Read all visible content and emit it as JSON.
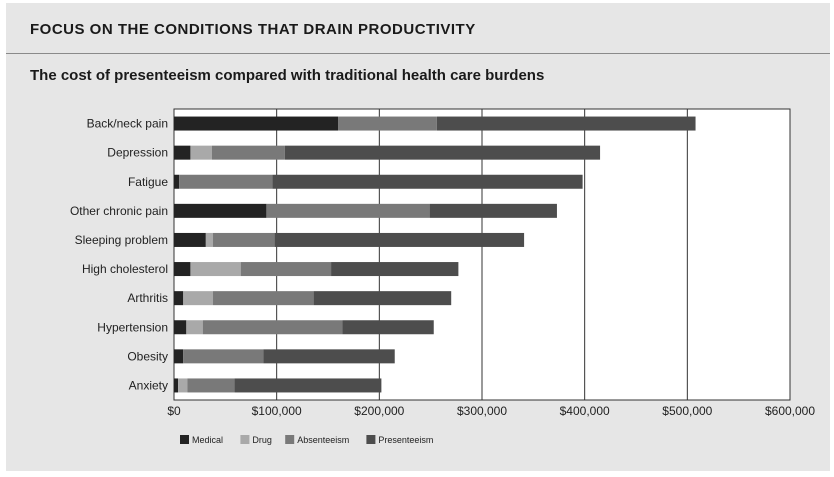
{
  "header": {
    "section_title": "FOCUS ON THE CONDITIONS THAT DRAIN PRODUCTIVITY"
  },
  "chart_data": {
    "type": "bar",
    "orientation": "horizontal",
    "stacked": true,
    "title": "The cost of presenteeism compared with traditional health care burdens",
    "xlim": [
      0,
      600000
    ],
    "x_ticks": [
      0,
      100000,
      200000,
      300000,
      400000,
      500000,
      600000
    ],
    "x_tick_labels": [
      "$0",
      "$100,000",
      "$200,000",
      "$300,000",
      "$400,000",
      "$500,000",
      "$600,000"
    ],
    "grid": "vertical",
    "legend_position": "bottom-left",
    "categories": [
      "Back/neck pain",
      "Depression",
      "Fatigue",
      "Other chronic pain",
      "Sleeping problem",
      "High cholesterol",
      "Arthritis",
      "Hypertension",
      "Obesity",
      "Anxiety"
    ],
    "series": [
      {
        "name": "Medical",
        "color": "#232323",
        "values": [
          160000,
          16000,
          5000,
          90000,
          31000,
          16000,
          9000,
          12000,
          9000,
          4000
        ]
      },
      {
        "name": "Drug",
        "color": "#a9a9a9",
        "values": [
          0,
          21000,
          0,
          0,
          7000,
          49000,
          29000,
          16000,
          0,
          9000
        ]
      },
      {
        "name": "Absenteeism",
        "color": "#797979",
        "values": [
          96000,
          71000,
          91000,
          159000,
          60000,
          88000,
          98000,
          136000,
          78000,
          46000
        ]
      },
      {
        "name": "Presenteeism",
        "color": "#4d4d4d",
        "values": [
          252000,
          307000,
          302000,
          124000,
          243000,
          124000,
          134000,
          89000,
          128000,
          143000
        ]
      }
    ]
  }
}
